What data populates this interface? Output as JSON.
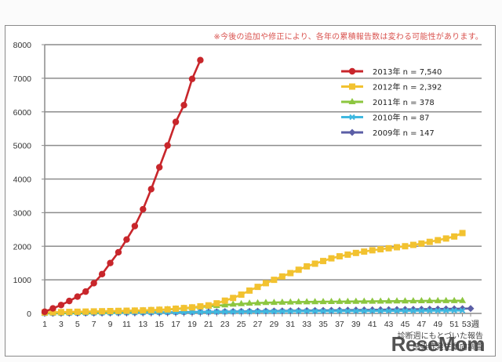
{
  "note": "※今後の追加や修正により、各年の累積報告数は変わる可能性があります。",
  "source_line1": "診断週にもとづいた報告",
  "source_line2": "感染症発生動向調査",
  "watermark": "ReseMom",
  "chart_data": {
    "type": "line",
    "title": "",
    "xlabel": "週",
    "ylabel": "",
    "xlim": [
      1,
      53
    ],
    "ylim": [
      0,
      8000
    ],
    "yticks": [
      0,
      1000,
      2000,
      3000,
      4000,
      5000,
      6000,
      7000,
      8000
    ],
    "xticks": [
      1,
      3,
      5,
      7,
      9,
      11,
      13,
      15,
      17,
      19,
      21,
      23,
      25,
      27,
      29,
      31,
      33,
      35,
      37,
      39,
      41,
      43,
      45,
      47,
      49,
      51,
      53
    ],
    "x_unit_suffix": "週",
    "grid": true,
    "legend_position": "top-right",
    "series": [
      {
        "name": "2013年 n = 7,540",
        "color": "#c8262b",
        "marker": "circle",
        "x": [
          1,
          2,
          3,
          4,
          5,
          6,
          7,
          8,
          9,
          10,
          11,
          12,
          13,
          14,
          15,
          16,
          17,
          18,
          19,
          20
        ],
        "values": [
          50,
          150,
          250,
          370,
          500,
          650,
          900,
          1170,
          1500,
          1820,
          2200,
          2600,
          3100,
          3700,
          4350,
          5000,
          5700,
          6200,
          6980,
          7540
        ]
      },
      {
        "name": "2012年 n = 2,392",
        "color": "#f2c230",
        "marker": "square",
        "x": [
          1,
          2,
          3,
          4,
          5,
          6,
          7,
          8,
          9,
          10,
          11,
          12,
          13,
          14,
          15,
          16,
          17,
          18,
          19,
          20,
          21,
          22,
          23,
          24,
          25,
          26,
          27,
          28,
          29,
          30,
          31,
          32,
          33,
          34,
          35,
          36,
          37,
          38,
          39,
          40,
          41,
          42,
          43,
          44,
          45,
          46,
          47,
          48,
          49,
          50,
          51,
          52
        ],
        "values": [
          30,
          35,
          40,
          45,
          50,
          55,
          60,
          65,
          70,
          75,
          80,
          85,
          90,
          100,
          110,
          120,
          140,
          160,
          180,
          210,
          240,
          300,
          380,
          460,
          560,
          680,
          790,
          900,
          1000,
          1100,
          1200,
          1300,
          1400,
          1480,
          1560,
          1640,
          1700,
          1750,
          1800,
          1840,
          1880,
          1910,
          1940,
          1970,
          2000,
          2040,
          2080,
          2130,
          2180,
          2230,
          2290,
          2392
        ]
      },
      {
        "name": "2011年 n = 378",
        "color": "#8cc63f",
        "marker": "triangle",
        "x": [
          1,
          2,
          3,
          4,
          5,
          6,
          7,
          8,
          9,
          10,
          11,
          12,
          13,
          14,
          15,
          16,
          17,
          18,
          19,
          20,
          21,
          22,
          23,
          24,
          25,
          26,
          27,
          28,
          29,
          30,
          31,
          32,
          33,
          34,
          35,
          36,
          37,
          38,
          39,
          40,
          41,
          42,
          43,
          44,
          45,
          46,
          47,
          48,
          49,
          50,
          51,
          52
        ],
        "values": [
          5,
          10,
          15,
          20,
          25,
          30,
          35,
          40,
          45,
          55,
          60,
          70,
          80,
          90,
          100,
          115,
          130,
          150,
          170,
          190,
          210,
          230,
          250,
          270,
          285,
          300,
          310,
          320,
          325,
          330,
          335,
          340,
          342,
          345,
          348,
          350,
          352,
          354,
          356,
          358,
          360,
          362,
          364,
          366,
          368,
          370,
          372,
          374,
          375,
          376,
          377,
          378
        ]
      },
      {
        "name": "2010年 n = 87",
        "color": "#3fb8e0",
        "marker": "x",
        "x": [
          1,
          2,
          3,
          4,
          5,
          6,
          7,
          8,
          9,
          10,
          11,
          12,
          13,
          14,
          15,
          16,
          17,
          18,
          19,
          20,
          21,
          22,
          23,
          24,
          25,
          26,
          27,
          28,
          29,
          30,
          31,
          32,
          33,
          34,
          35,
          36,
          37,
          38,
          39,
          40,
          41,
          42,
          43,
          44,
          45,
          46,
          47,
          48,
          49,
          50,
          51,
          52
        ],
        "values": [
          2,
          4,
          6,
          8,
          10,
          12,
          14,
          16,
          18,
          20,
          22,
          24,
          26,
          28,
          30,
          32,
          34,
          36,
          38,
          40,
          42,
          44,
          46,
          48,
          50,
          52,
          54,
          56,
          58,
          60,
          62,
          64,
          66,
          67,
          68,
          69,
          70,
          71,
          72,
          73,
          74,
          75,
          76,
          77,
          78,
          79,
          80,
          81,
          82,
          84,
          86,
          87
        ]
      },
      {
        "name": "2009年 n = 147",
        "color": "#5b5ea6",
        "marker": "diamond",
        "x": [
          1,
          2,
          3,
          4,
          5,
          6,
          7,
          8,
          9,
          10,
          11,
          12,
          13,
          14,
          15,
          16,
          17,
          18,
          19,
          20,
          21,
          22,
          23,
          24,
          25,
          26,
          27,
          28,
          29,
          30,
          31,
          32,
          33,
          34,
          35,
          36,
          37,
          38,
          39,
          40,
          41,
          42,
          43,
          44,
          45,
          46,
          47,
          48,
          49,
          50,
          51,
          52,
          53
        ],
        "values": [
          2,
          4,
          6,
          8,
          10,
          12,
          14,
          16,
          18,
          20,
          22,
          24,
          26,
          28,
          30,
          33,
          36,
          39,
          42,
          45,
          48,
          51,
          54,
          57,
          60,
          63,
          66,
          69,
          72,
          75,
          78,
          81,
          84,
          87,
          90,
          93,
          96,
          99,
          102,
          105,
          108,
          111,
          114,
          117,
          120,
          123,
          126,
          129,
          132,
          135,
          138,
          142,
          147
        ]
      }
    ]
  }
}
